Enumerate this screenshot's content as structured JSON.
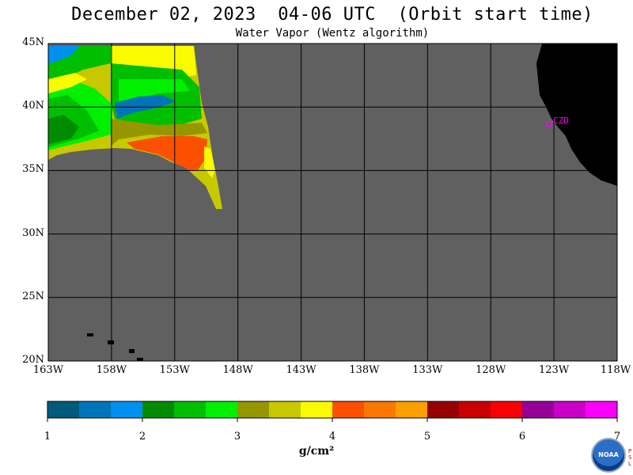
{
  "title": "December 02, 2023  04-06 UTC  (Orbit start time)",
  "subtitle": "Water Vapor (Wentz algorithm)",
  "map": {
    "lon_range": [
      -163,
      -118
    ],
    "lat_range": [
      20,
      45
    ],
    "lat_labels": [
      "45N",
      "40N",
      "35N",
      "30N",
      "25N",
      "20N"
    ],
    "lon_labels": [
      "163W",
      "158W",
      "153W",
      "148W",
      "143W",
      "138W",
      "133W",
      "128W",
      "123W",
      "118W"
    ],
    "station_label": "CZD",
    "colors": {
      "ocean_nodata": "#606060",
      "land": "#000000",
      "grid": "#000000",
      "station": "#ff00ff"
    }
  },
  "colorbar": {
    "ticks": [
      "1",
      "2",
      "3",
      "4",
      "5",
      "6",
      "7"
    ],
    "unit": "g/cm²",
    "colors": [
      "#005a7e",
      "#0074b8",
      "#0090f0",
      "#008c00",
      "#00be00",
      "#00f000",
      "#969600",
      "#c8c800",
      "#fafa00",
      "#fa5000",
      "#fa7800",
      "#fa9f00",
      "#960000",
      "#c80000",
      "#fa0000",
      "#960096",
      "#c800c8",
      "#fa00fa"
    ]
  },
  "logo": {
    "text": "NOAA",
    "side_text": "PSL"
  }
}
